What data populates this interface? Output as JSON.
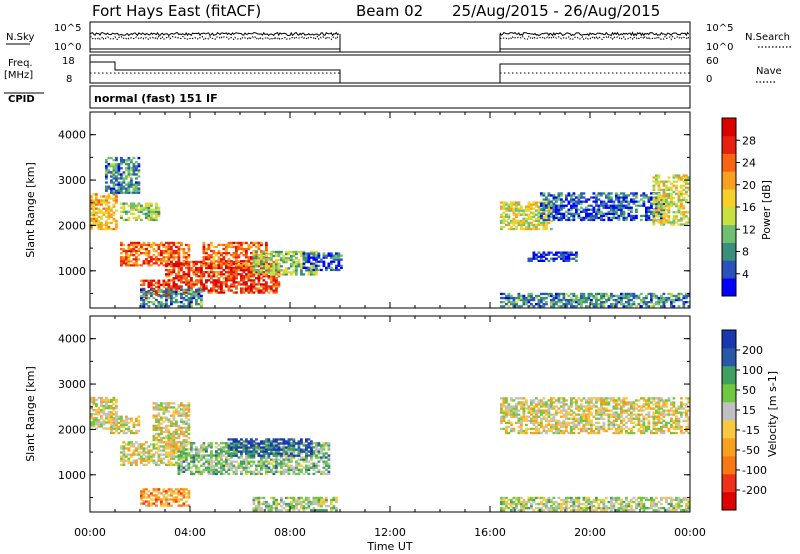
{
  "header": {
    "title": "Fort Hays East (fitACF)",
    "beam": "Beam 02",
    "date_range": "25/Aug/2015 - 26/Aug/2015"
  },
  "status_panels": {
    "nsky_label": "N.Sky",
    "nsky_ticks": [
      "10^5",
      "10^0"
    ],
    "nsearch_label": "N.Search",
    "nsearch_ticks": [
      "10^5",
      "10^0"
    ],
    "freq_label": "Freq.",
    "freq_unit": "[MHz]",
    "freq_ticks": [
      "18",
      "8"
    ],
    "nave_label": "Nave",
    "nave_ticks": [
      "60",
      "0"
    ],
    "cpid_label": "CPID",
    "cpid_value": "normal (fast) 151 IF"
  },
  "chart_data": [
    {
      "type": "heatmap",
      "name": "power",
      "ylabel": "Slant Range [km]",
      "yticks": [
        "4000",
        "3000",
        "2000",
        "1000"
      ],
      "ylim": [
        180,
        4500
      ],
      "colorbar_label": "Power [dB]",
      "colorbar_ticks": [
        "28",
        "24",
        "20",
        "16",
        "12",
        "8",
        "4"
      ],
      "colors": [
        "#0000ff",
        "#2a52be",
        "#3a8f7a",
        "#6cc070",
        "#c8e040",
        "#f8d02c",
        "#f8a020",
        "#f86414",
        "#e82010",
        "#dc0000"
      ],
      "data_gap_hours": [
        10.0,
        16.4
      ],
      "regions": [
        {
          "t": [
            0.0,
            1.0
          ],
          "r": [
            1900,
            2700
          ],
          "value": 18
        },
        {
          "t": [
            0.6,
            2.0
          ],
          "r": [
            2700,
            3500
          ],
          "value": 10
        },
        {
          "t": [
            1.2,
            2.8
          ],
          "r": [
            2100,
            2500
          ],
          "value": 14
        },
        {
          "t": [
            1.2,
            4.0
          ],
          "r": [
            1100,
            1600
          ],
          "value": 22
        },
        {
          "t": [
            2.0,
            3.2
          ],
          "r": [
            400,
            800
          ],
          "value": 24
        },
        {
          "t": [
            3.0,
            7.5
          ],
          "r": [
            500,
            1200
          ],
          "value": 24
        },
        {
          "t": [
            4.5,
            7.0
          ],
          "r": [
            1100,
            1600
          ],
          "value": 22
        },
        {
          "t": [
            6.5,
            9.0
          ],
          "r": [
            900,
            1400
          ],
          "value": 14
        },
        {
          "t": [
            8.5,
            10.0
          ],
          "r": [
            1000,
            1400
          ],
          "value": 8
        },
        {
          "t": [
            2.0,
            4.5
          ],
          "r": [
            200,
            600
          ],
          "value": 10
        },
        {
          "t": [
            16.4,
            18.5
          ],
          "r": [
            1900,
            2500
          ],
          "value": 16
        },
        {
          "t": [
            18.0,
            23.0
          ],
          "r": [
            2100,
            2700
          ],
          "value": 8
        },
        {
          "t": [
            22.5,
            24.0
          ],
          "r": [
            2000,
            3100
          ],
          "value": 16
        },
        {
          "t": [
            17.5,
            19.5
          ],
          "r": [
            1200,
            1400
          ],
          "value": 6
        },
        {
          "t": [
            16.4,
            24.0
          ],
          "r": [
            200,
            500
          ],
          "value": 10
        }
      ]
    },
    {
      "type": "heatmap",
      "name": "velocity",
      "ylabel": "Slant Range [km]",
      "yticks": [
        "4000",
        "3000",
        "2000",
        "1000"
      ],
      "ylim": [
        180,
        4500
      ],
      "colorbar_label": "Velocity [m s-1]",
      "colorbar_ticks": [
        "200",
        "100",
        "50",
        "15",
        "-15",
        "-50",
        "-100",
        "-200"
      ],
      "colors": [
        "#e00000",
        "#f03018",
        "#f87814",
        "#f8a020",
        "#f8c840",
        "#c0c0c0",
        "#70c840",
        "#40a060",
        "#2858a8",
        "#1838b0"
      ],
      "data_gap_hours": [
        10.0,
        16.4
      ],
      "regions": [
        {
          "t": [
            0.0,
            1.0
          ],
          "r": [
            2000,
            2700
          ],
          "value": 0
        },
        {
          "t": [
            0.8,
            2.0
          ],
          "r": [
            1900,
            2300
          ],
          "value": 0
        },
        {
          "t": [
            1.2,
            3.8
          ],
          "r": [
            1200,
            1700
          ],
          "value": 0
        },
        {
          "t": [
            2.5,
            4.0
          ],
          "r": [
            1700,
            2600
          ],
          "value": 0
        },
        {
          "t": [
            3.5,
            9.5
          ],
          "r": [
            1000,
            1700
          ],
          "value": 60
        },
        {
          "t": [
            5.5,
            8.8
          ],
          "r": [
            1400,
            1800
          ],
          "value": 150
        },
        {
          "t": [
            2.0,
            4.0
          ],
          "r": [
            300,
            700
          ],
          "value": -60
        },
        {
          "t": [
            6.5,
            9.8
          ],
          "r": [
            200,
            500
          ],
          "value": 40
        },
        {
          "t": [
            16.4,
            24.0
          ],
          "r": [
            1900,
            2700
          ],
          "value": 0
        },
        {
          "t": [
            16.4,
            24.0
          ],
          "r": [
            200,
            500
          ],
          "value": 30
        }
      ]
    }
  ],
  "xaxis": {
    "label": "Time UT",
    "ticks": [
      "00:00",
      "04:00",
      "08:00",
      "12:00",
      "16:00",
      "20:00",
      "00:00"
    ]
  }
}
